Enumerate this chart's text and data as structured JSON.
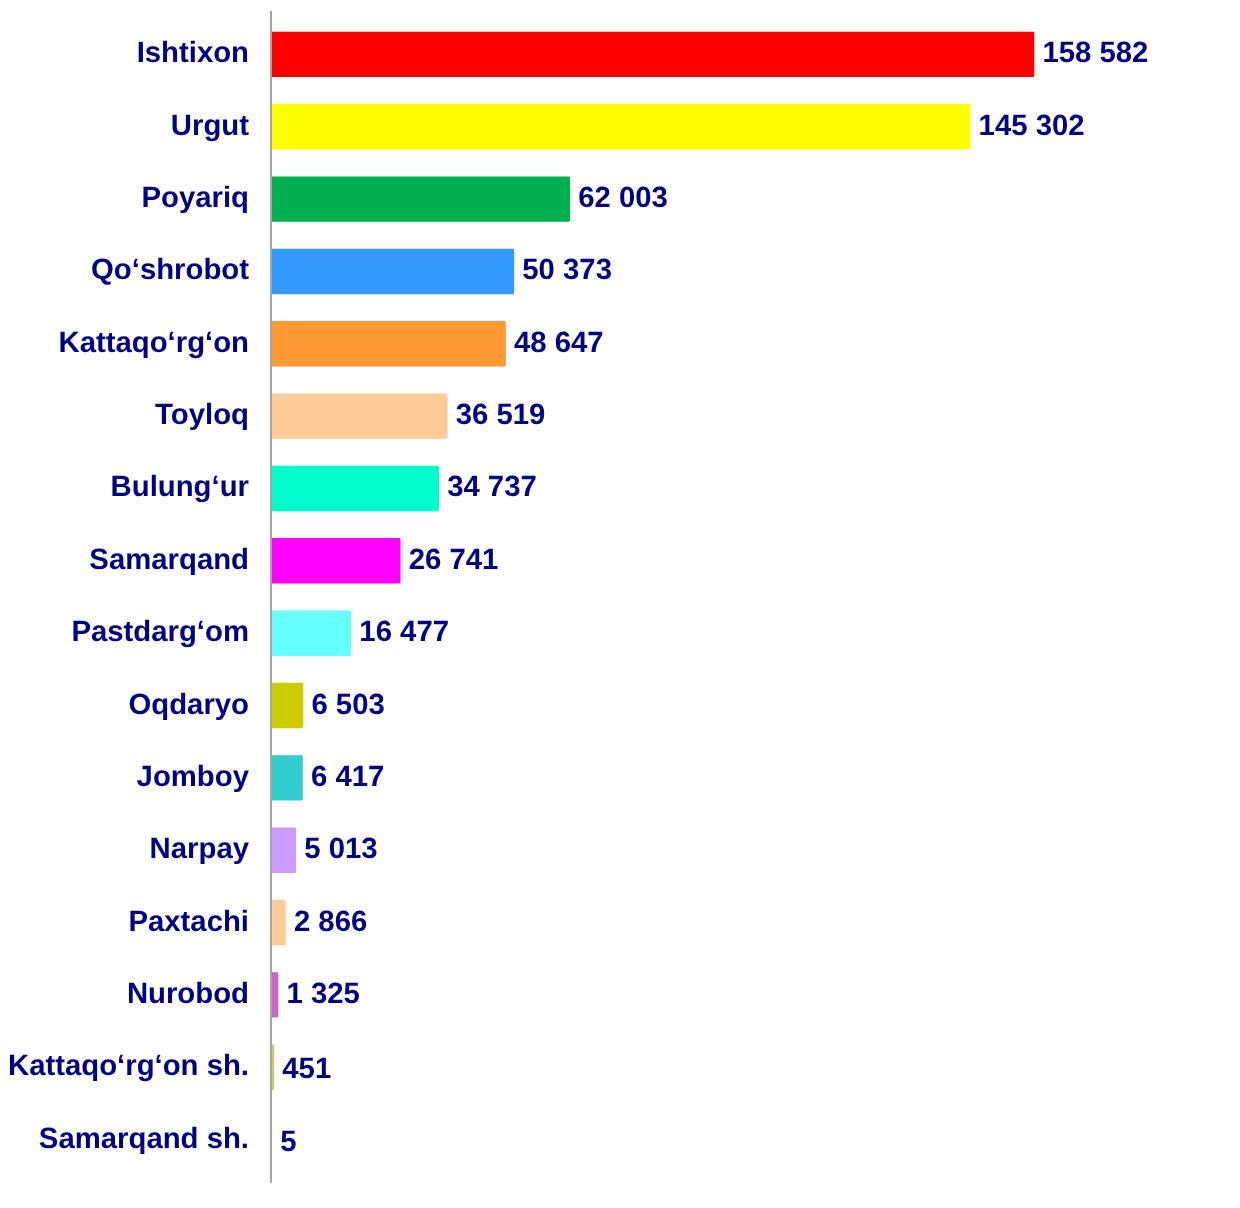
{
  "chart_data": {
    "type": "bar",
    "orientation": "horizontal",
    "categories": [
      "Ishtixon",
      "Urgut",
      "Poyariq",
      "Qo‘shrobot",
      "Kattaqo‘rg‘on",
      "Toyloq",
      "Bulung‘ur",
      "Samarqand",
      "Pastdarg‘om",
      "Oqdaryo",
      "Jomboy",
      "Narpay",
      "Paxtachi",
      "Nurobod",
      "Kattaqo‘rg‘on sh.",
      "Samarqand sh."
    ],
    "values": [
      158582,
      145302,
      62003,
      50373,
      48647,
      36519,
      34737,
      26741,
      16477,
      6503,
      6417,
      5013,
      2866,
      1325,
      451,
      5
    ],
    "colors": [
      "#ff0000",
      "#ffff00",
      "#00b050",
      "#3399ff",
      "#ff9933",
      "#ffcc99",
      "#00ffcc",
      "#ff00ff",
      "#66ffff",
      "#cccc00",
      "#33cccc",
      "#cc99ff",
      "#ffcc99",
      "#cc66cc",
      "#cccc66",
      "#3399cc"
    ],
    "value_labels": [
      "158 582",
      "145 302",
      "62 003",
      "50 373",
      "48 647",
      "36 519",
      "34 737",
      "26 741",
      "16 477",
      "6 503",
      "6 417",
      "5 013",
      "2 866",
      "1 325",
      "451",
      "5"
    ],
    "tick_labels": "y"
  }
}
